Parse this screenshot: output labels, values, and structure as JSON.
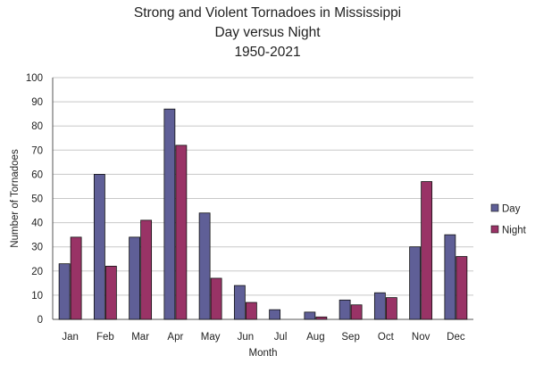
{
  "chart_data": {
    "type": "bar",
    "title": [
      "Strong and Violent Tornadoes in Mississippi",
      "Day versus Night",
      "1950-2021"
    ],
    "xlabel": "Month",
    "ylabel": "Number of Tornadoes",
    "ylim": [
      0,
      100
    ],
    "yticks": [
      0,
      10,
      20,
      30,
      40,
      50,
      60,
      70,
      80,
      90,
      100
    ],
    "grid": true,
    "legend_position": "right",
    "categories": [
      "Jan",
      "Feb",
      "Mar",
      "Apr",
      "May",
      "Jun",
      "Jul",
      "Aug",
      "Sep",
      "Oct",
      "Nov",
      "Dec"
    ],
    "series": [
      {
        "name": "Day",
        "color": "#5f5f97",
        "values": [
          23,
          60,
          34,
          87,
          44,
          14,
          4,
          3,
          8,
          11,
          30,
          35
        ]
      },
      {
        "name": "Night",
        "color": "#993366",
        "values": [
          34,
          22,
          41,
          72,
          17,
          7,
          0,
          1,
          6,
          9,
          57,
          26
        ]
      }
    ]
  }
}
